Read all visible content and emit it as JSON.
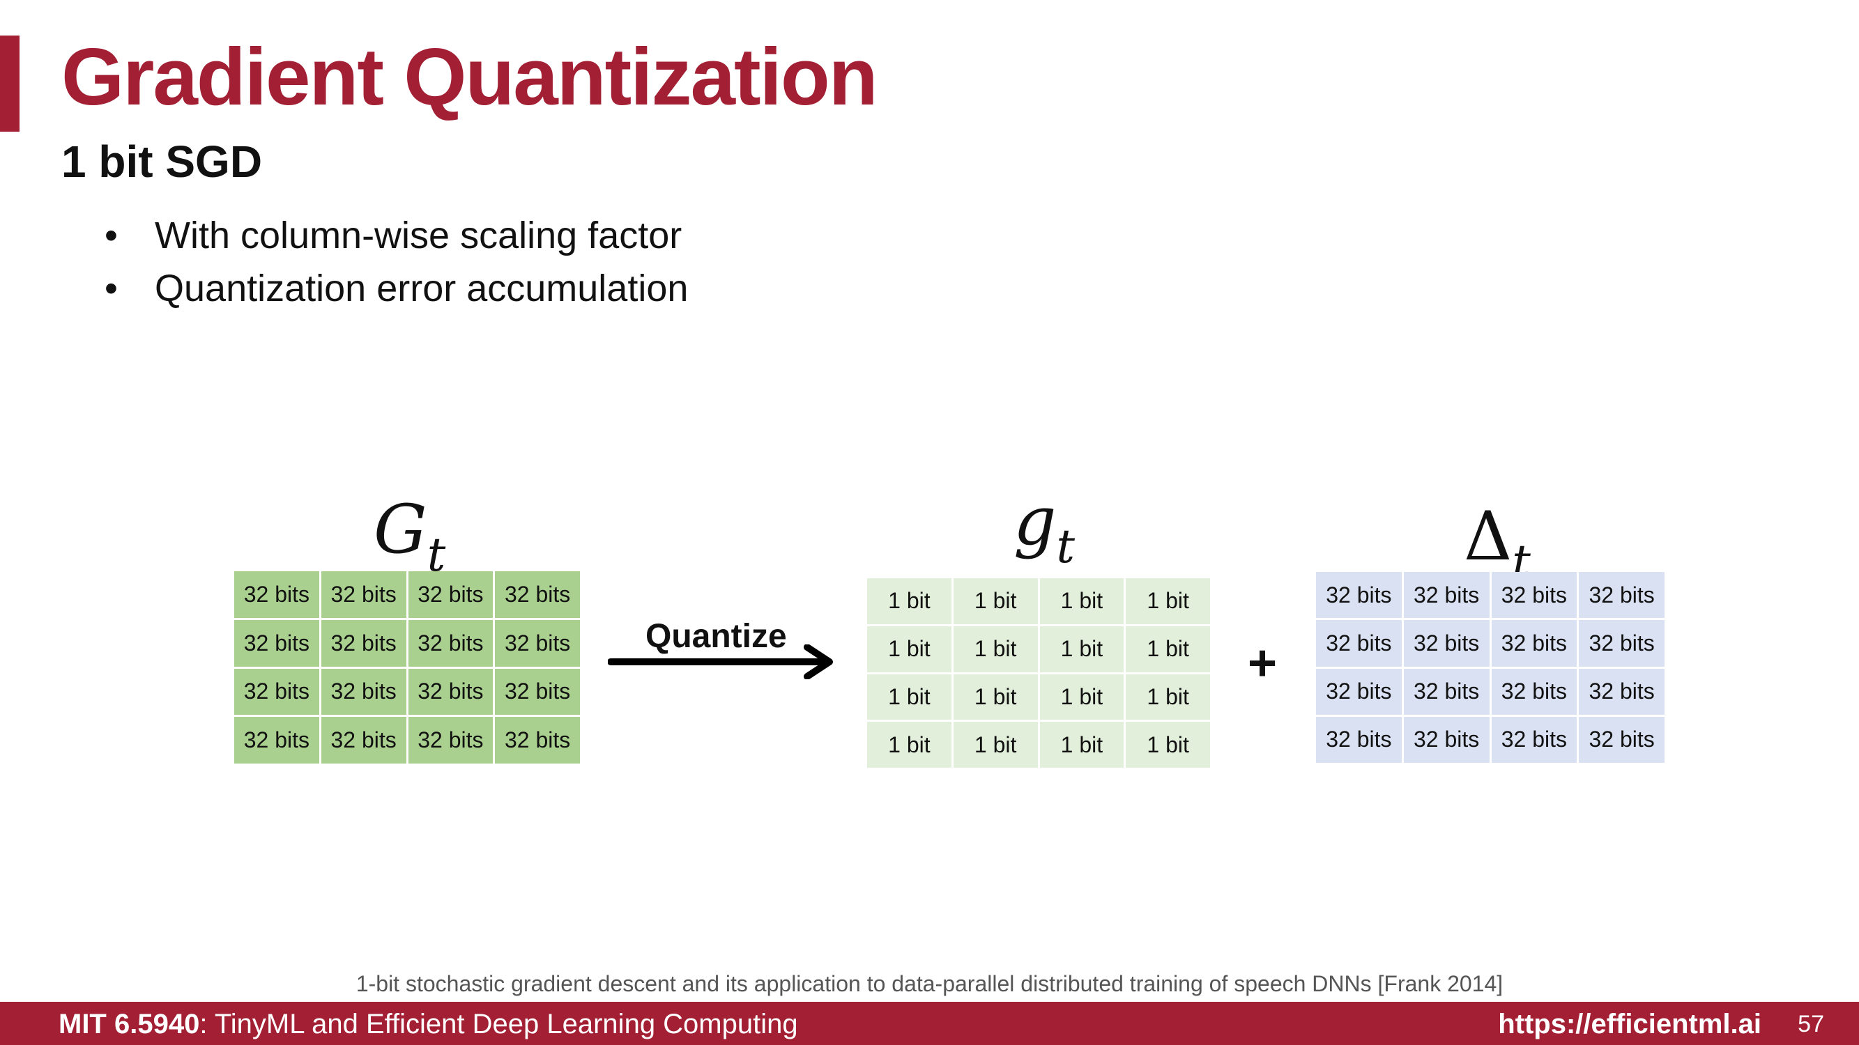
{
  "slide": {
    "title": "Gradient Quantization",
    "subtitle": "1 bit SGD",
    "bullets": [
      "With column-wise scaling factor",
      "Quantization error accumulation"
    ],
    "bullet_char": "•"
  },
  "diagram": {
    "matrix_g": {
      "symbol": "G",
      "subscript": "t",
      "color": "#a9d08e",
      "rows": [
        [
          "32 bits",
          "32 bits",
          "32 bits",
          "32 bits"
        ],
        [
          "32 bits",
          "32 bits",
          "32 bits",
          "32 bits"
        ],
        [
          "32 bits",
          "32 bits",
          "32 bits",
          "32 bits"
        ],
        [
          "32 bits",
          "32 bits",
          "32 bits",
          "32 bits"
        ]
      ]
    },
    "arrow_label": "Quantize",
    "matrix_q": {
      "symbol": "g",
      "subscript": "t",
      "color": "#e2efda",
      "rows": [
        [
          "1 bit",
          "1 bit",
          "1 bit",
          "1 bit"
        ],
        [
          "1 bit",
          "1 bit",
          "1 bit",
          "1 bit"
        ],
        [
          "1 bit",
          "1 bit",
          "1 bit",
          "1 bit"
        ],
        [
          "1 bit",
          "1 bit",
          "1 bit",
          "1 bit"
        ]
      ]
    },
    "operator": "+",
    "matrix_delta": {
      "symbol": "Δ",
      "subscript": "t",
      "color": "#d9e1f2",
      "rows": [
        [
          "32 bits",
          "32 bits",
          "32 bits",
          "32 bits"
        ],
        [
          "32 bits",
          "32 bits",
          "32 bits",
          "32 bits"
        ],
        [
          "32 bits",
          "32 bits",
          "32 bits",
          "32 bits"
        ],
        [
          "32 bits",
          "32 bits",
          "32 bits",
          "32 bits"
        ]
      ]
    }
  },
  "citation": "1-bit stochastic gradient descent and its application to data-parallel distributed training of speech DNNs [Frank 2014]",
  "footer": {
    "course_code": "MIT 6.5940",
    "course_name": ": TinyML and Efficient Deep Learning Computing",
    "url": "https://efficientml.ai",
    "page_number": "57",
    "color": "#a31f34"
  }
}
